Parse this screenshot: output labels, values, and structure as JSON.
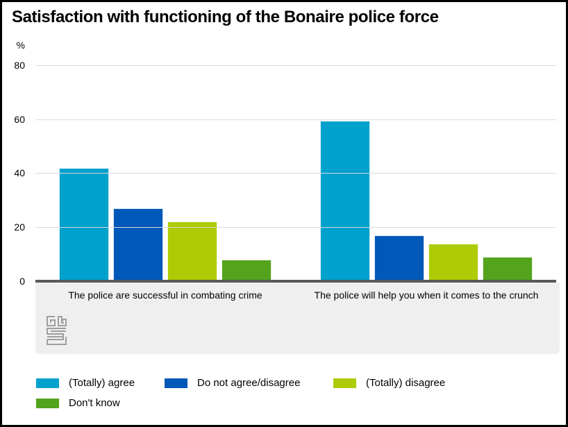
{
  "title": "Satisfaction with functioning of the Bonaire police force",
  "unit_label": "%",
  "chart_data": {
    "type": "bar",
    "title": "Satisfaction with functioning of the Bonaire police force",
    "ylabel": "%",
    "ylim": [
      0,
      80
    ],
    "yticks": [
      80,
      60,
      40,
      20,
      0
    ],
    "grid": true,
    "legend_position": "bottom",
    "categories": [
      "The police are successful in combating crime",
      "The police will help you when it comes to the crunch"
    ],
    "series": [
      {
        "name": "(Totally) agree",
        "color": "#00a1cd",
        "values": [
          42,
          59.5
        ]
      },
      {
        "name": "Do not agree/disagree",
        "color": "#0058b8",
        "values": [
          27,
          17
        ]
      },
      {
        "name": "(Totally) disagree",
        "color": "#afcb05",
        "values": [
          22,
          14
        ]
      },
      {
        "name": "Don't know",
        "color": "#53a31d",
        "values": [
          8,
          9
        ]
      }
    ],
    "colors": {
      "gridline": "#d9d9d9",
      "axis_line": "#58595b",
      "x_band": "#efefef",
      "logo_gray": "#9e9e9e"
    }
  },
  "footer": {
    "logo_name": "cbs-logo"
  }
}
